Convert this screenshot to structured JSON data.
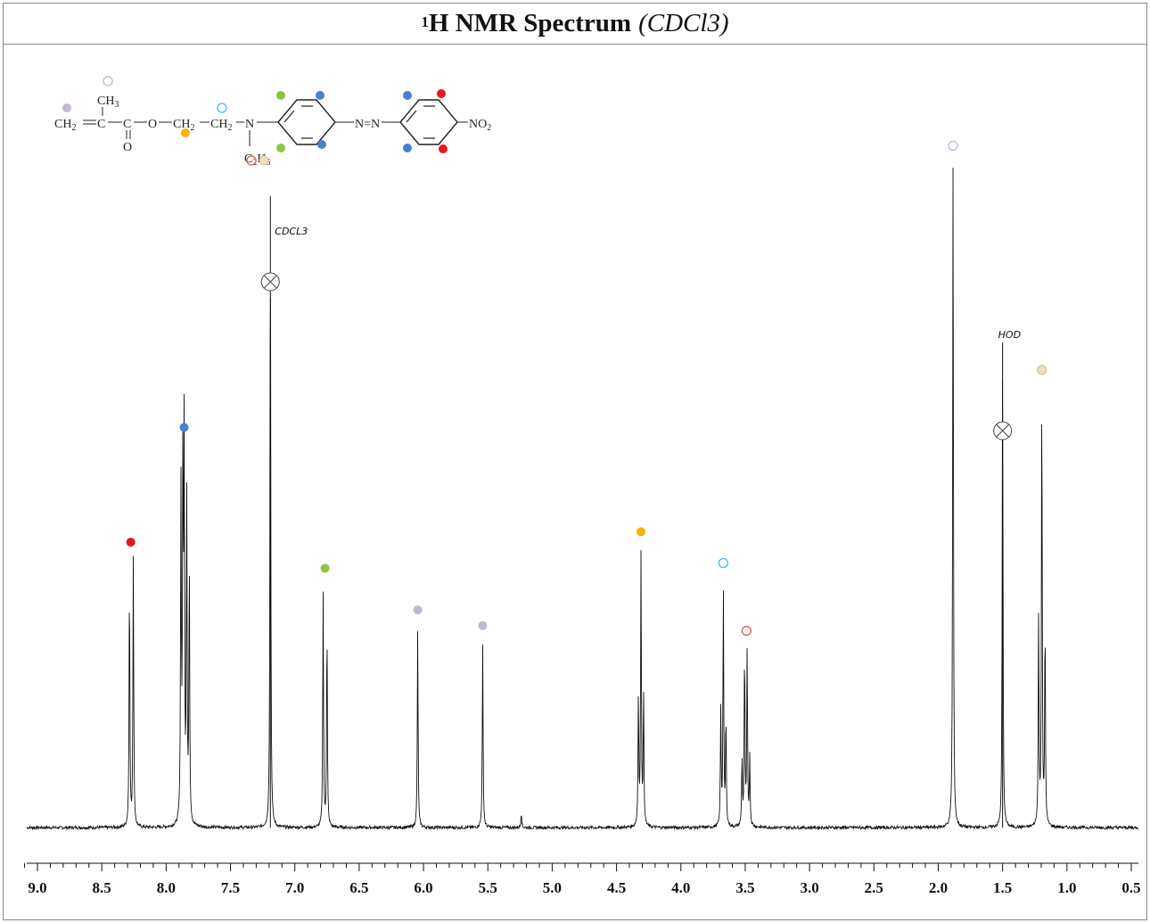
{
  "title": {
    "main": "H NMR Spectrum",
    "superscript": "1",
    "solvent": "(CDCl3)"
  },
  "structure": {
    "fragments": [
      "CH2=C",
      "CH3",
      "C",
      "O",
      "O",
      "CH2",
      "CH2",
      "N",
      "C2H5",
      "N=N",
      "NO2"
    ]
  },
  "colors": {
    "red": "#e8171a",
    "blue": "#4a7fcf",
    "green": "#8cc63e",
    "lavender": "#c4b5d6",
    "orange": "#f5b400",
    "cyan_open": "#45b8e8",
    "red_open": "#e05555",
    "peach_open": "#f0dcc0",
    "trace": "#111111"
  },
  "chart_data": {
    "type": "line",
    "xlabel": "",
    "ylabel": "",
    "xlim": [
      9.15,
      0.45
    ],
    "x_reversed": true,
    "ticks": [
      "9.0",
      "8.5",
      "8.0",
      "7.5",
      "7.0",
      "6.5",
      "6.0",
      "5.5",
      "5.0",
      "4.5",
      "4.0",
      "3.5",
      "3.0",
      "2.5",
      "2.0",
      "1.5",
      "1.0",
      "0.5"
    ],
    "tick_values": [
      9.0,
      8.5,
      8.0,
      7.5,
      7.0,
      6.5,
      6.0,
      5.5,
      5.0,
      4.5,
      4.0,
      3.5,
      3.0,
      2.5,
      2.0,
      1.5,
      1.0,
      0.5
    ],
    "minor_tick_step": 0.1,
    "annotations": [
      {
        "text": "CDCL3",
        "ppm": 7.19
      },
      {
        "text": "HOD",
        "ppm": 1.5
      }
    ],
    "peaks": [
      {
        "ppm": 8.275,
        "height": 0.53,
        "marker": "red",
        "marker_style": "filled",
        "lines": [
          8.285,
          8.255
        ],
        "line_heights": [
          0.48,
          0.52
        ]
      },
      {
        "ppm": 7.86,
        "height": 0.75,
        "marker": "blue",
        "marker_style": "filled",
        "lines": [
          7.885,
          7.87,
          7.86,
          7.84,
          7.82
        ],
        "line_heights": [
          0.64,
          0.68,
          0.73,
          0.62,
          0.5
        ]
      },
      {
        "ppm": 7.19,
        "height": 1.21,
        "marker": "solvent",
        "marker_style": "cross",
        "lines": [
          7.19
        ],
        "line_heights": [
          1.21
        ]
      },
      {
        "ppm": 6.765,
        "height": 0.48,
        "marker": "green",
        "marker_style": "filled",
        "lines": [
          6.78,
          6.75
        ],
        "line_heights": [
          0.45,
          0.39
        ]
      },
      {
        "ppm": 6.045,
        "height": 0.4,
        "marker": "lavender",
        "marker_style": "filled",
        "lines": [
          6.045
        ],
        "line_heights": [
          0.38
        ]
      },
      {
        "ppm": 5.54,
        "height": 0.37,
        "marker": "lavender",
        "marker_style": "filled",
        "lines": [
          5.54
        ],
        "line_heights": [
          0.35
        ]
      },
      {
        "ppm": 4.31,
        "height": 0.55,
        "marker": "orange",
        "marker_style": "filled",
        "lines": [
          4.33,
          4.31,
          4.29
        ],
        "line_heights": [
          0.25,
          0.52,
          0.25
        ]
      },
      {
        "ppm": 3.67,
        "height": 0.49,
        "marker": "cyan_open",
        "marker_style": "open",
        "lines": [
          3.69,
          3.67,
          3.65
        ],
        "line_heights": [
          0.22,
          0.46,
          0.21
        ]
      },
      {
        "ppm": 3.49,
        "height": 0.36,
        "marker": "red_open",
        "marker_style": "open",
        "lines": [
          3.525,
          3.505,
          3.485,
          3.465
        ],
        "line_heights": [
          0.13,
          0.34,
          0.34,
          0.13
        ]
      },
      {
        "ppm": 1.885,
        "height": 1.29,
        "marker": "lavender_open",
        "marker_style": "open",
        "lines": [
          1.885
        ],
        "line_heights": [
          1.29
        ]
      },
      {
        "ppm": 1.5,
        "height": 0.93,
        "marker": "solvent",
        "marker_style": "cross",
        "lines": [
          1.5
        ],
        "line_heights": [
          0.93
        ]
      },
      {
        "ppm": 1.195,
        "height": 0.86,
        "marker": "peach_open",
        "marker_style": "open",
        "lines": [
          1.22,
          1.195,
          1.17
        ],
        "line_heights": [
          0.4,
          0.85,
          0.39
        ]
      }
    ],
    "minor_features": [
      {
        "ppm": 5.24,
        "height": 0.03
      }
    ]
  }
}
